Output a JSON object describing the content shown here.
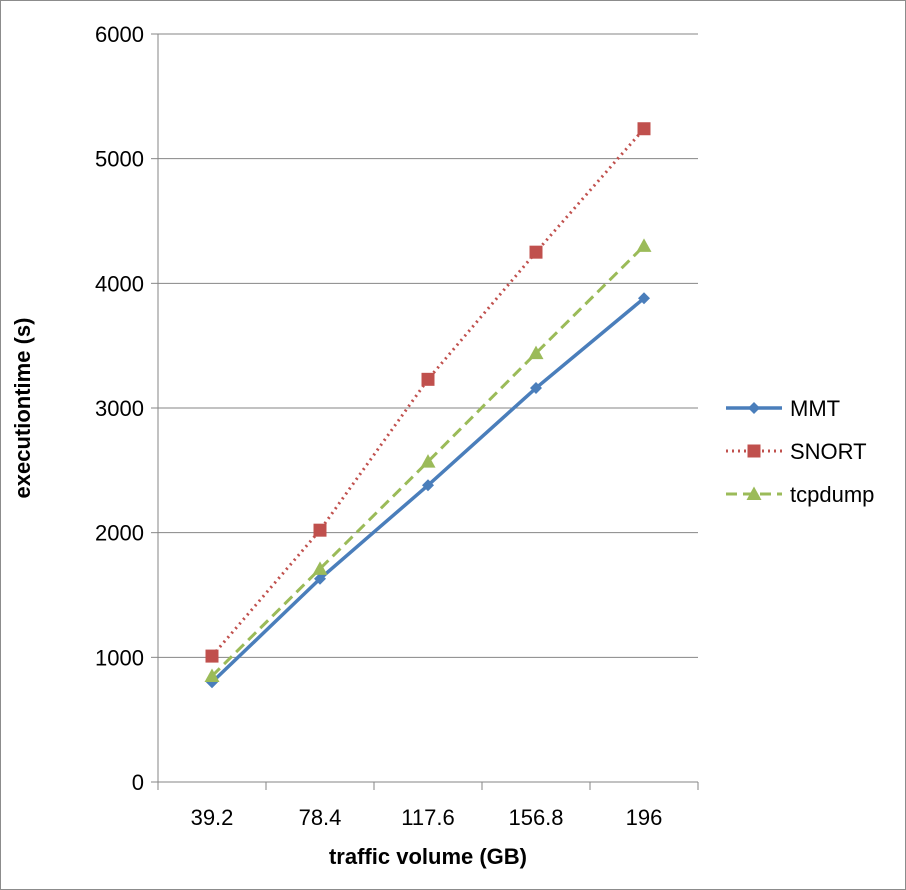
{
  "chart_data": {
    "type": "line",
    "title": "",
    "xlabel": "traffic volume (GB)",
    "ylabel": "executiontime (s)",
    "categories": [
      "39.2",
      "78.4",
      "117.6",
      "156.8",
      "196"
    ],
    "ylim": [
      0,
      6000
    ],
    "yticks": [
      "0",
      "1000",
      "2000",
      "3000",
      "4000",
      "5000",
      "6000"
    ],
    "grid": "horizontal",
    "legend_position": "right",
    "series": [
      {
        "name": "MMT",
        "values": [
          800,
          1630,
          2380,
          3160,
          3880
        ],
        "color": "#4a7ebb",
        "marker": "diamond",
        "line_style": "solid"
      },
      {
        "name": "SNORT",
        "values": [
          1010,
          2020,
          3230,
          4250,
          5240
        ],
        "color": "#c0504d",
        "marker": "square",
        "line_style": "dotted"
      },
      {
        "name": "tcpdump",
        "values": [
          850,
          1710,
          2570,
          3440,
          4300
        ],
        "color": "#9bbb59",
        "marker": "triangle",
        "line_style": "dashed"
      }
    ]
  }
}
